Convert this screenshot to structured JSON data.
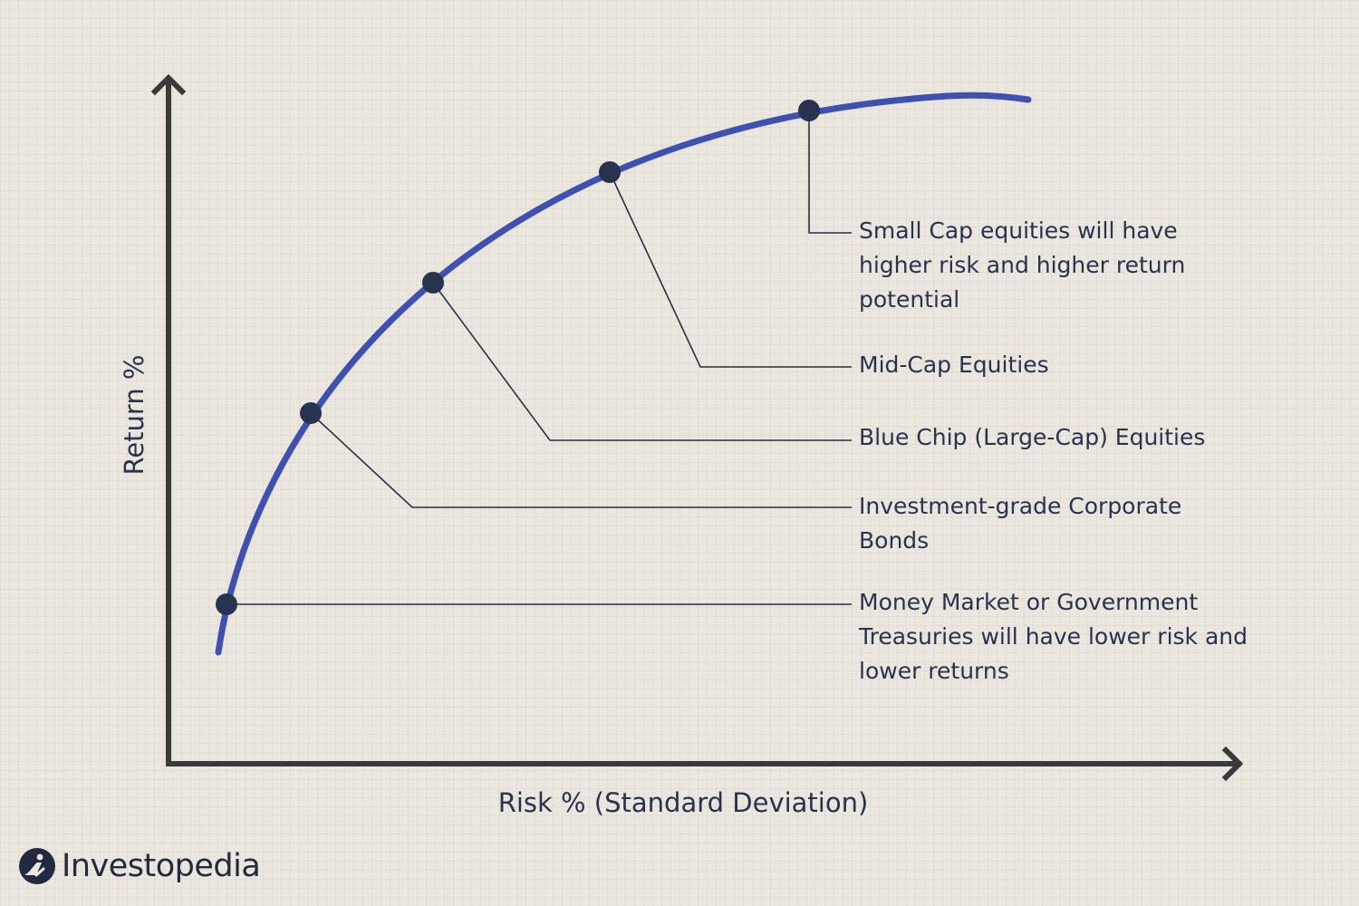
{
  "chart_data": {
    "type": "line",
    "xlabel": "Risk % (Standard Deviation)",
    "ylabel": "Return %",
    "annotations": [
      "Money Market or Government Treasuries will have lower risk and lower returns",
      "Investment-grade Corporate Bonds",
      "Blue Chip (Large-Cap) Equities",
      "Mid-Cap Equities",
      "Small Cap equities will have higher risk and higher return potential"
    ],
    "grid": true,
    "legend": "none",
    "colors": {
      "curve": "#3f51b0",
      "points": "#28334f",
      "axes": "#3a3a3a"
    }
  },
  "labels": {
    "money_market": "Money Market or Government Treasuries will have lower risk and lower returns",
    "corporate_bonds": "Investment-grade Corporate Bonds",
    "blue_chip": "Blue Chip (Large-Cap) Equities",
    "mid_cap": "Mid-Cap Equities",
    "small_cap": "Small Cap equities will have higher risk and higher return potential"
  },
  "brand": {
    "name": "Investopedia",
    "icon": "investopedia-logo-icon"
  }
}
